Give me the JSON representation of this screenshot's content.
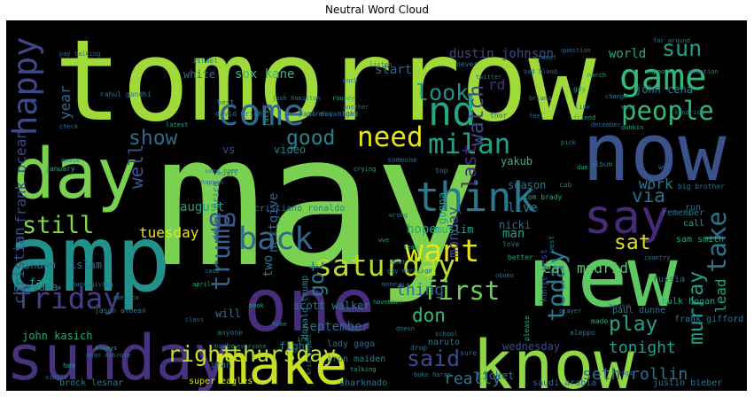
{
  "chart_data": {
    "type": "wordcloud",
    "title": "Neutral Word Cloud",
    "background": "#000000",
    "colormap": "viridis",
    "words": [
      {
        "text": "may",
        "weight": 1.0,
        "color": "#7ad151"
      },
      {
        "text": "tomorrow",
        "weight": 0.62,
        "color": "#9fda3a"
      },
      {
        "text": "amp",
        "weight": 0.5,
        "color": "#21918c"
      },
      {
        "text": "new",
        "weight": 0.46,
        "color": "#5ec962"
      },
      {
        "text": "now",
        "weight": 0.44,
        "color": "#3b528b"
      },
      {
        "text": "one",
        "weight": 0.4,
        "color": "#472d7b"
      },
      {
        "text": "day",
        "weight": 0.38,
        "color": "#7ad151"
      },
      {
        "text": "know",
        "weight": 0.37,
        "color": "#8fd744"
      },
      {
        "text": "sunday",
        "weight": 0.34,
        "color": "#46327e"
      },
      {
        "text": "make",
        "weight": 0.3,
        "color": "#c8e020"
      },
      {
        "text": "say",
        "weight": 0.26,
        "color": "#482878"
      },
      {
        "text": "think",
        "weight": 0.22,
        "color": "#2a788e"
      },
      {
        "text": "come",
        "weight": 0.2,
        "color": "#31688e"
      },
      {
        "text": "game",
        "weight": 0.2,
        "color": "#35b779"
      },
      {
        "text": "nd",
        "weight": 0.22,
        "color": "#22a884"
      },
      {
        "text": "happy",
        "weight": 0.18,
        "color": "#3e4989"
      },
      {
        "text": "back",
        "weight": 0.17,
        "color": "#31688e"
      },
      {
        "text": "want",
        "weight": 0.17,
        "color": "#e5e419"
      },
      {
        "text": "saturday",
        "weight": 0.16,
        "color": "#b5de2b"
      },
      {
        "text": "friday",
        "weight": 0.16,
        "color": "#433e85"
      },
      {
        "text": "milan",
        "weight": 0.15,
        "color": "#1fa187"
      },
      {
        "text": "need",
        "weight": 0.15,
        "color": "#e5e419"
      },
      {
        "text": "people",
        "weight": 0.14,
        "color": "#35b779"
      },
      {
        "text": "first",
        "weight": 0.14,
        "color": "#6ece58"
      },
      {
        "text": "take",
        "weight": 0.14,
        "color": "#2c728e"
      },
      {
        "text": "trump",
        "weight": 0.14,
        "color": "#34618d"
      },
      {
        "text": "today",
        "weight": 0.13,
        "color": "#2a788e"
      },
      {
        "text": "still",
        "weight": 0.13,
        "color": "#84d44b"
      },
      {
        "text": "go",
        "weight": 0.13,
        "color": "#3b528b"
      },
      {
        "text": "sun",
        "weight": 0.12,
        "color": "#1f9e89"
      },
      {
        "text": "look",
        "weight": 0.12,
        "color": "#21918c"
      },
      {
        "text": "said",
        "weight": 0.12,
        "color": "#3e4989"
      },
      {
        "text": "right",
        "weight": 0.12,
        "color": "#c8e020"
      },
      {
        "text": "thursday",
        "weight": 0.12,
        "color": "#b5de2b"
      },
      {
        "text": "play",
        "weight": 0.11,
        "color": "#20a386"
      },
      {
        "text": "show",
        "weight": 0.11,
        "color": "#31688e"
      },
      {
        "text": "good",
        "weight": 0.11,
        "color": "#26828e"
      },
      {
        "text": "watch",
        "weight": 0.11,
        "color": "#3e4989"
      },
      {
        "text": "got",
        "weight": 0.11,
        "color": "#2a788e"
      },
      {
        "text": "sat",
        "weight": 0.11,
        "color": "#d8e219"
      },
      {
        "text": "murray",
        "weight": 0.11,
        "color": "#1f9e89"
      },
      {
        "text": "last",
        "weight": 0.1,
        "color": "#482677"
      },
      {
        "text": "don",
        "weight": 0.1,
        "color": "#35b779"
      },
      {
        "text": "via",
        "weight": 0.1,
        "color": "#2d708e"
      },
      {
        "text": "well",
        "weight": 0.1,
        "color": "#3b528b"
      },
      {
        "text": "really",
        "weight": 0.09,
        "color": "#2a788e"
      },
      {
        "text": "seth rollin",
        "weight": 0.09,
        "color": "#2d708e"
      },
      {
        "text": "tonight",
        "weight": 0.09,
        "color": "#1fa187"
      },
      {
        "text": "thing",
        "weight": 0.09,
        "color": "#31688e"
      },
      {
        "text": "real madrid",
        "weight": 0.08,
        "color": "#52c569"
      },
      {
        "text": "monday",
        "weight": 0.08,
        "color": "#3e4989"
      },
      {
        "text": "lead",
        "weight": 0.08,
        "color": "#1fa187"
      },
      {
        "text": "work",
        "weight": 0.08,
        "color": "#2a788e"
      },
      {
        "text": "tuesday",
        "weight": 0.08,
        "color": "#e5e419"
      },
      {
        "text": "christian",
        "weight": 0.08,
        "color": "#3b528b"
      },
      {
        "text": "frank ocean",
        "weight": 0.08,
        "color": "#3e4989"
      },
      {
        "text": "rd",
        "weight": 0.08,
        "color": "#46327e"
      },
      {
        "text": "year",
        "weight": 0.08,
        "color": "#31688e"
      },
      {
        "text": "dustin johnson",
        "weight": 0.07,
        "color": "#3e4989"
      },
      {
        "text": "sox kane",
        "weight": 0.07,
        "color": "#35b779"
      },
      {
        "text": "start",
        "weight": 0.07,
        "color": "#31688e"
      },
      {
        "text": "world",
        "weight": 0.07,
        "color": "#22a884"
      },
      {
        "text": "man",
        "weight": 0.07,
        "color": "#1fa187"
      },
      {
        "text": "live",
        "weight": 0.07,
        "color": "#2a788e"
      },
      {
        "text": "hope",
        "weight": 0.07,
        "color": "#20a386"
      },
      {
        "text": "nextgive",
        "weight": 0.07,
        "color": "#31688e"
      },
      {
        "text": "two",
        "weight": 0.07,
        "color": "#2a788e"
      },
      {
        "text": "august",
        "weight": 0.07,
        "color": "#1fa187"
      },
      {
        "text": "september",
        "weight": 0.07,
        "color": "#31688e"
      },
      {
        "text": "wednesday",
        "weight": 0.06,
        "color": "#3e4989"
      },
      {
        "text": "fight",
        "weight": 0.06,
        "color": "#2a788e"
      },
      {
        "text": "ticket",
        "weight": 0.06,
        "color": "#2d708e"
      },
      {
        "text": "john cena",
        "weight": 0.06,
        "color": "#26828e"
      },
      {
        "text": "will",
        "weight": 0.06,
        "color": "#2a788e"
      },
      {
        "text": "vs",
        "weight": 0.06,
        "color": "#3b528b"
      },
      {
        "text": "muslim",
        "weight": 0.06,
        "color": "#22a884"
      },
      {
        "text": "season",
        "weight": 0.06,
        "color": "#2a788e"
      },
      {
        "text": "nicki",
        "weight": 0.06,
        "color": "#2d708e"
      },
      {
        "text": "yakub",
        "weight": 0.06,
        "color": "#35b779"
      },
      {
        "text": "scott walker",
        "weight": 0.06,
        "color": "#2a788e"
      },
      {
        "text": "gonna",
        "weight": 0.06,
        "color": "#1fa187"
      },
      {
        "text": "white",
        "weight": 0.06,
        "color": "#2d708e"
      },
      {
        "text": "video",
        "weight": 0.06,
        "color": "#26828e"
      },
      {
        "text": "shawn",
        "weight": 0.06,
        "color": "#2a788e"
      },
      {
        "text": "islam",
        "weight": 0.06,
        "color": "#31688e"
      },
      {
        "text": "fan",
        "weight": 0.06,
        "color": "#1fa187"
      },
      {
        "text": "nirvana",
        "weight": 0.06,
        "color": "#2a788e"
      },
      {
        "text": "john kasich",
        "weight": 0.06,
        "color": "#22a884"
      },
      {
        "text": "brock lesnar",
        "weight": 0.05,
        "color": "#2a788e"
      },
      {
        "text": "super eagles",
        "weight": 0.05,
        "color": "#d8e219"
      },
      {
        "text": "sharknado",
        "weight": 0.05,
        "color": "#2a788e"
      },
      {
        "text": "saudi arabia",
        "weight": 0.05,
        "color": "#31688e"
      },
      {
        "text": "justin bieber",
        "weight": 0.05,
        "color": "#2d708e"
      },
      {
        "text": "paul dunne",
        "weight": 0.05,
        "color": "#2a788e"
      },
      {
        "text": "hulk hogan",
        "weight": 0.05,
        "color": "#22a884"
      },
      {
        "text": "frank gifford",
        "weight": 0.05,
        "color": "#2a788e"
      },
      {
        "text": "russia",
        "weight": 0.05,
        "color": "#31688e"
      },
      {
        "text": "sam smith",
        "weight": 0.05,
        "color": "#22a884"
      },
      {
        "text": "remember",
        "weight": 0.05,
        "color": "#2a788e"
      },
      {
        "text": "call",
        "weight": 0.05,
        "color": "#1fa187"
      },
      {
        "text": "run",
        "weight": 0.05,
        "color": "#2d708e"
      },
      {
        "text": "iran",
        "weight": 0.05,
        "color": "#2a788e"
      },
      {
        "text": "kanye west",
        "weight": 0.05,
        "color": "#3e4989"
      },
      {
        "text": "naruto",
        "weight": 0.05,
        "color": "#2a788e"
      },
      {
        "text": "lady gaga",
        "weight": 0.05,
        "color": "#31688e"
      },
      {
        "text": "iron maiden",
        "weight": 0.05,
        "color": "#2a788e"
      },
      {
        "text": "donald trump",
        "weight": 0.05,
        "color": "#26828e"
      },
      {
        "text": "cristiano ronaldo",
        "weight": 0.05,
        "color": "#2a788e"
      },
      {
        "text": "david price",
        "weight": 0.05,
        "color": "#31688e"
      },
      {
        "text": "jason aldean",
        "weight": 0.04,
        "color": "#2a788e"
      },
      {
        "text": "tom brady",
        "weight": 0.04,
        "color": "#22a884"
      },
      {
        "text": "david wright",
        "weight": 0.04,
        "color": "#2a788e"
      },
      {
        "text": "monday night",
        "weight": 0.04,
        "color": "#31688e"
      },
      {
        "text": "rahul gandhi",
        "weight": 0.04,
        "color": "#2a788e"
      },
      {
        "text": "israel",
        "weight": 0.04,
        "color": "#2a788e"
      },
      {
        "text": "july",
        "weight": 0.04,
        "color": "#22a884"
      },
      {
        "text": "best",
        "weight": 0.04,
        "color": "#2a788e"
      },
      {
        "text": "thor",
        "weight": 0.04,
        "color": "#31688e"
      },
      {
        "text": "top",
        "weight": 0.04,
        "color": "#2a788e"
      },
      {
        "text": "better",
        "weight": 0.04,
        "color": "#22a884"
      },
      {
        "text": "love",
        "weight": 0.04,
        "color": "#2a788e"
      },
      {
        "text": "someone",
        "weight": 0.04,
        "color": "#31688e"
      },
      {
        "text": "anyone",
        "weight": 0.04,
        "color": "#2a788e"
      },
      {
        "text": "please",
        "weight": 0.04,
        "color": "#22a884"
      },
      {
        "text": "west",
        "weight": 0.04,
        "color": "#2a788e"
      },
      {
        "text": "paul mccartney",
        "weight": 0.04,
        "color": "#31688e"
      },
      {
        "text": "never",
        "weight": 0.04,
        "color": "#2a788e"
      },
      {
        "text": "guy",
        "weight": 0.04,
        "color": "#22a884"
      },
      {
        "text": "album",
        "weight": 0.04,
        "color": "#2a788e"
      },
      {
        "text": "won",
        "weight": 0.04,
        "color": "#31688e"
      },
      {
        "text": "big brother",
        "weight": 0.04,
        "color": "#2a788e"
      },
      {
        "text": "made",
        "weight": 0.04,
        "color": "#22a884"
      },
      {
        "text": "cub",
        "weight": 0.04,
        "color": "#2a788e"
      },
      {
        "text": "house",
        "weight": 0.04,
        "color": "#31688e"
      },
      {
        "text": "maybe",
        "weight": 0.04,
        "color": "#2a788e"
      },
      {
        "text": "hey",
        "weight": 0.04,
        "color": "#22a884"
      },
      {
        "text": "drop",
        "weight": 0.04,
        "color": "#2a788e"
      },
      {
        "text": "sure",
        "weight": 0.04,
        "color": "#31688e"
      },
      {
        "text": "aleppo",
        "weight": 0.04,
        "color": "#2a788e"
      },
      {
        "text": "january",
        "weight": 0.04,
        "color": "#22a884"
      },
      {
        "text": "tweet",
        "weight": 0.03,
        "color": "#2a788e"
      },
      {
        "text": "bad blood",
        "weight": 0.03,
        "color": "#31688e"
      },
      {
        "text": "far around",
        "weight": 0.03,
        "color": "#2a788e"
      },
      {
        "text": "march",
        "weight": 0.03,
        "color": "#22a884"
      },
      {
        "text": "twitter",
        "weight": 0.03,
        "color": "#2a788e"
      },
      {
        "text": "briana",
        "weight": 0.03,
        "color": "#31688e"
      },
      {
        "text": "election",
        "weight": 0.03,
        "color": "#2a788e"
      },
      {
        "text": "support",
        "weight": 0.03,
        "color": "#22a884"
      },
      {
        "text": "change",
        "weight": 0.03,
        "color": "#2a788e"
      },
      {
        "text": "line",
        "weight": 0.03,
        "color": "#31688e"
      },
      {
        "text": "wait",
        "weight": 0.03,
        "color": "#2a788e"
      },
      {
        "text": "rousey",
        "weight": 0.03,
        "color": "#22a884"
      },
      {
        "text": "much",
        "weight": 0.03,
        "color": "#2a788e"
      },
      {
        "text": "another",
        "weight": 0.03,
        "color": "#31688e"
      },
      {
        "text": "josh hamilton",
        "weight": 0.03,
        "color": "#2a788e"
      },
      {
        "text": "november",
        "weight": 0.03,
        "color": "#22a884"
      },
      {
        "text": "gay marriage",
        "weight": 0.03,
        "color": "#2a788e"
      },
      {
        "text": "moneyw",
        "weight": 0.03,
        "color": "#31688e"
      },
      {
        "text": "wwe",
        "weight": 0.03,
        "color": "#2a788e"
      },
      {
        "text": "team",
        "weight": 0.03,
        "color": "#22a884"
      },
      {
        "text": "beat",
        "weight": 0.03,
        "color": "#2a788e"
      },
      {
        "text": "obama",
        "weight": 0.03,
        "color": "#31688e"
      },
      {
        "text": "country",
        "weight": 0.03,
        "color": "#2a788e"
      },
      {
        "text": "dunkin",
        "weight": 0.03,
        "color": "#22a884"
      },
      {
        "text": "kendrick",
        "weight": 0.03,
        "color": "#2a788e"
      },
      {
        "text": "december",
        "weight": 0.03,
        "color": "#31688e"
      },
      {
        "text": "pick",
        "weight": 0.03,
        "color": "#2a788e"
      },
      {
        "text": "friend",
        "weight": 0.03,
        "color": "#22a884"
      },
      {
        "text": "listen",
        "weight": 0.03,
        "color": "#2a788e"
      },
      {
        "text": "check",
        "weight": 0.03,
        "color": "#31688e"
      },
      {
        "text": "movie",
        "weight": 0.03,
        "color": "#2a788e"
      },
      {
        "text": "latest",
        "weight": 0.03,
        "color": "#22a884"
      },
      {
        "text": "song name",
        "weight": 0.03,
        "color": "#2a788e"
      },
      {
        "text": "pay talking",
        "weight": 0.03,
        "color": "#31688e"
      },
      {
        "text": "school",
        "weight": 0.03,
        "color": "#2a788e"
      },
      {
        "text": "talking",
        "weight": 0.03,
        "color": "#22a884"
      },
      {
        "text": "boko haram",
        "weight": 0.03,
        "color": "#2a788e"
      },
      {
        "text": "yoga",
        "weight": 0.03,
        "color": "#31688e"
      },
      {
        "text": "doesn",
        "weight": 0.03,
        "color": "#2a788e"
      },
      {
        "text": "april",
        "weight": 0.03,
        "color": "#22a884"
      },
      {
        "text": "kris bryant",
        "weight": 0.03,
        "color": "#2a788e"
      },
      {
        "text": "dean ambrose",
        "weight": 0.03,
        "color": "#31688e"
      },
      {
        "text": "thanksgiving",
        "weight": 0.03,
        "color": "#2a788e"
      },
      {
        "text": "always",
        "weight": 0.03,
        "color": "#22a884"
      },
      {
        "text": "everyone",
        "weight": 0.03,
        "color": "#2a788e"
      },
      {
        "text": "single",
        "weight": 0.03,
        "color": "#31688e"
      },
      {
        "text": "home",
        "weight": 0.03,
        "color": "#2a788e"
      },
      {
        "text": "ira",
        "weight": 0.03,
        "color": "#22a884"
      },
      {
        "text": "feel",
        "weight": 0.03,
        "color": "#2a788e"
      },
      {
        "text": "question",
        "weight": 0.03,
        "color": "#31688e"
      },
      {
        "text": "player",
        "weight": 0.03,
        "color": "#2a788e"
      },
      {
        "text": "due",
        "weight": 0.03,
        "color": "#22a884"
      },
      {
        "text": "niall",
        "weight": 0.03,
        "color": "#2a788e"
      },
      {
        "text": "happen",
        "weight": 0.03,
        "color": "#31688e"
      },
      {
        "text": "wrong",
        "weight": 0.03,
        "color": "#2a788e"
      },
      {
        "text": "crying",
        "weight": 0.03,
        "color": "#22a884"
      },
      {
        "text": "case",
        "weight": 0.03,
        "color": "#2a788e"
      },
      {
        "text": "class",
        "weight": 0.03,
        "color": "#31688e"
      },
      {
        "text": "america",
        "weight": 0.03,
        "color": "#2a788e"
      },
      {
        "text": "book",
        "weight": 0.03,
        "color": "#22a884"
      }
    ]
  }
}
